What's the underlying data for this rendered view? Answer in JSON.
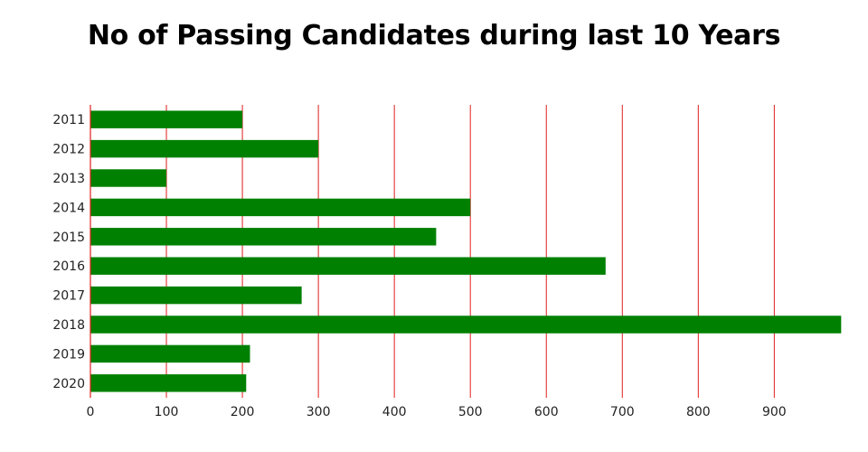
{
  "chart_data": {
    "type": "bar",
    "orientation": "horizontal",
    "title": "No of Passing Candidates during last 10 Years",
    "categories": [
      "2011",
      "2012",
      "2013",
      "2014",
      "2015",
      "2016",
      "2017",
      "2018",
      "2019",
      "2020"
    ],
    "values": [
      200,
      300,
      100,
      500,
      455,
      678,
      278,
      988,
      210,
      205
    ],
    "xlim": [
      0,
      990
    ],
    "xticks": [
      0,
      100,
      200,
      300,
      400,
      500,
      600,
      700,
      800,
      900
    ],
    "grid": "vertical",
    "colors": {
      "bar": "#008000",
      "grid": "#e01e1e",
      "axis": "#e01e1e"
    }
  }
}
